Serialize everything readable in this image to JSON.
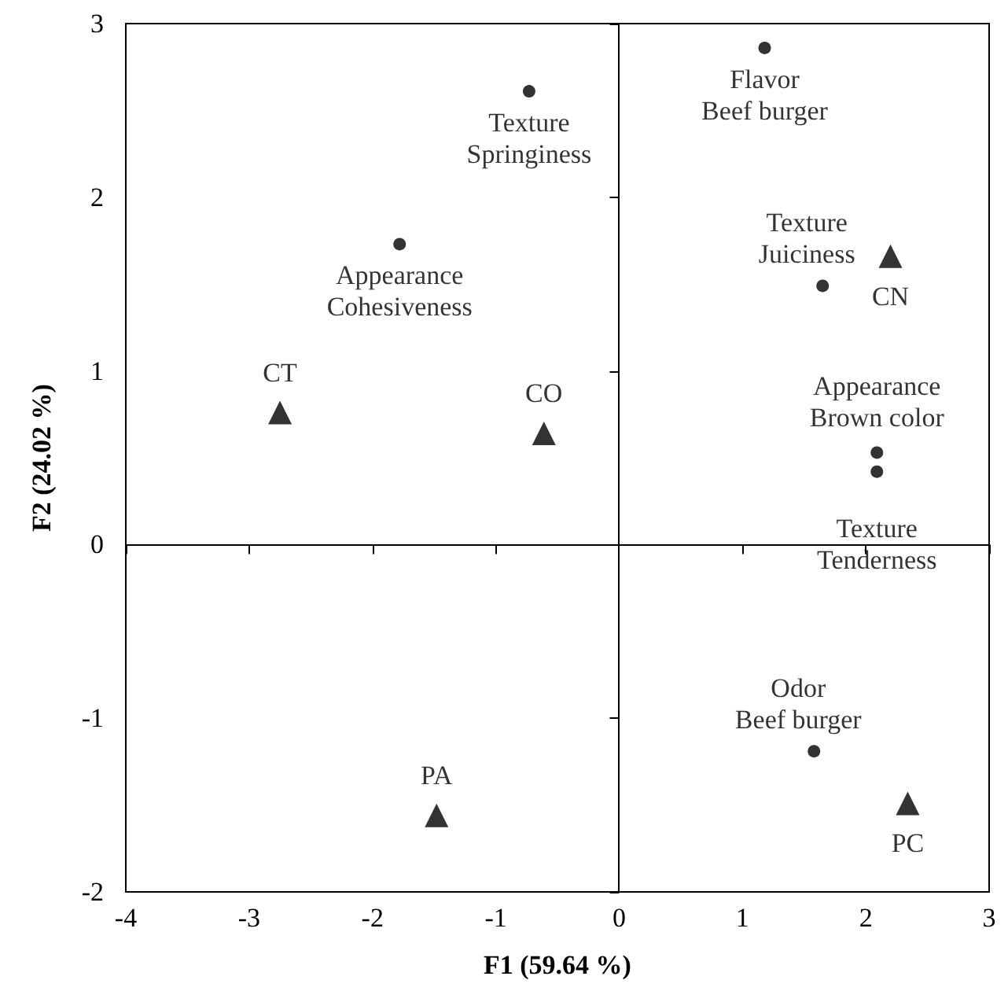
{
  "chart_data": {
    "type": "scatter",
    "xlabel": "F1 (59.64 %)",
    "ylabel": "F2 (24.02 %)",
    "xlim": [
      -4,
      3
    ],
    "ylim": [
      -2,
      3
    ],
    "xticks": [
      -4,
      -3,
      -2,
      -1,
      0,
      1,
      2,
      3
    ],
    "yticks": [
      -2,
      -1,
      0,
      1,
      2,
      3
    ],
    "series": [
      {
        "color": "#000000",
        "marker": "circle",
        "x": [
          -0.73,
          -1.78,
          1.18,
          1.65,
          2.09,
          2.09,
          1.58
        ],
        "values": [
          2.61,
          1.73,
          2.86,
          1.49,
          0.53,
          0.42,
          -1.19
        ],
        "value_labels": [
          "Texture\nSpringiness",
          "Appearance\nCohesiveness",
          "Flavor\nBeef burger",
          "Texture\nJuiciness",
          "Appearance\nBrown color",
          "Texture\nTenderness",
          "Odor\nBeef burger"
        ]
      },
      {
        "color": "#000000",
        "marker": "triangle",
        "x": [
          2.2,
          -2.75,
          -0.61,
          -1.48,
          2.34
        ],
        "values": [
          1.66,
          0.76,
          0.64,
          -1.56,
          -1.49
        ],
        "value_labels": [
          "CN",
          "CT",
          "CO",
          "PA",
          "PC"
        ]
      }
    ]
  }
}
